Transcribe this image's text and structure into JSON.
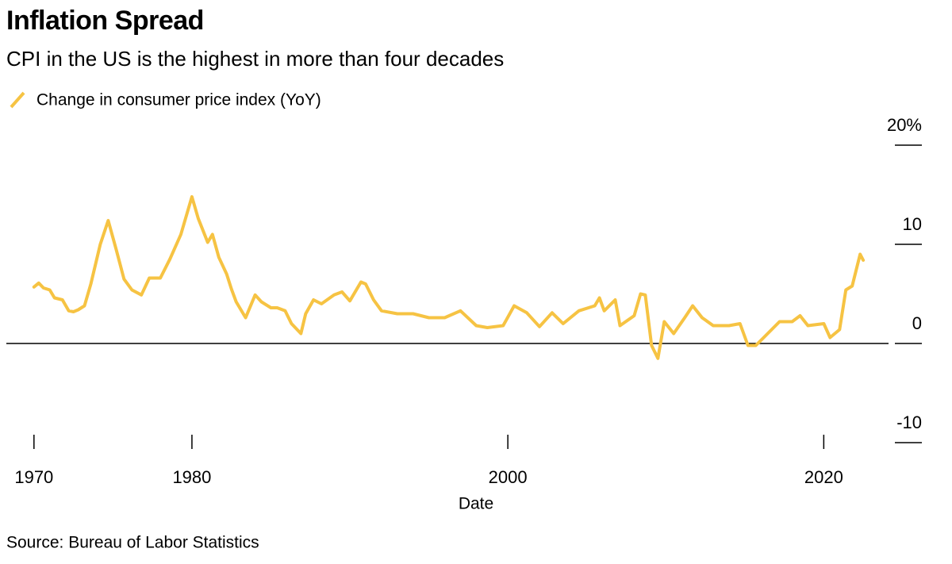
{
  "chart_data": {
    "type": "line",
    "title": "Inflation Spread",
    "subtitle": "CPI in the US is the highest in more than four decades",
    "source": "Source: Bureau of Labor Statistics",
    "x_label": "Date",
    "x": [
      1970.0,
      1970.3,
      1970.6,
      1971.0,
      1971.3,
      1971.8,
      1972.2,
      1972.5,
      1972.8,
      1973.2,
      1973.6,
      1974.2,
      1974.7,
      1975.2,
      1975.7,
      1976.2,
      1976.8,
      1977.3,
      1978.0,
      1978.6,
      1979.3,
      1980.0,
      1980.4,
      1981.0,
      1981.3,
      1981.7,
      1982.2,
      1982.5,
      1982.8,
      1983.4,
      1984.0,
      1984.4,
      1985.0,
      1985.4,
      1985.9,
      1986.3,
      1986.9,
      1987.2,
      1987.7,
      1988.2,
      1989.0,
      1989.5,
      1990.0,
      1990.7,
      1991.0,
      1991.5,
      1992.0,
      1993.0,
      1994.0,
      1995.0,
      1996.0,
      1997.0,
      1998.0,
      1998.7,
      1999.7,
      2000.4,
      2001.2,
      2002.0,
      2002.8,
      2003.5,
      2004.5,
      2005.5,
      2005.8,
      2006.1,
      2006.8,
      2007.1,
      2008.0,
      2008.4,
      2008.7,
      2009.1,
      2009.5,
      2009.9,
      2010.5,
      2011.2,
      2011.7,
      2012.3,
      2013.0,
      2014.0,
      2014.7,
      2015.2,
      2015.7,
      2016.2,
      2017.2,
      2018.0,
      2018.5,
      2019.0,
      2020.0,
      2020.4,
      2021.0,
      2021.4,
      2021.8,
      2022.3,
      2022.5
    ],
    "series": [
      {
        "name": "Change in consumer price index (YoY)",
        "color": "#f6c343",
        "values": [
          5.7,
          6.1,
          5.6,
          5.4,
          4.6,
          4.4,
          3.3,
          3.2,
          3.4,
          3.8,
          6.0,
          10.0,
          12.4,
          9.5,
          6.5,
          5.4,
          4.9,
          6.6,
          6.6,
          8.5,
          11.0,
          14.8,
          12.6,
          10.2,
          11.0,
          8.7,
          7.0,
          5.5,
          4.2,
          2.6,
          4.9,
          4.2,
          3.6,
          3.6,
          3.3,
          2.0,
          1.0,
          3.0,
          4.4,
          4.0,
          4.9,
          5.2,
          4.3,
          6.2,
          6.0,
          4.4,
          3.3,
          3.0,
          3.0,
          2.6,
          2.6,
          3.3,
          1.8,
          1.6,
          1.8,
          3.8,
          3.1,
          1.7,
          3.1,
          2.0,
          3.3,
          3.8,
          4.6,
          3.3,
          4.4,
          1.8,
          2.8,
          5.0,
          4.9,
          -0.2,
          -1.5,
          2.2,
          1.0,
          2.6,
          3.8,
          2.6,
          1.8,
          1.8,
          2.0,
          -0.2,
          -0.2,
          0.6,
          2.2,
          2.2,
          2.8,
          1.8,
          2.0,
          0.6,
          1.4,
          5.4,
          5.8,
          9.0,
          8.4
        ]
      }
    ],
    "xlim": [
      1968,
      2024
    ],
    "xticks": [
      1970,
      1980,
      2000,
      2020
    ],
    "ylim": [
      -10,
      20
    ],
    "yticks": [
      {
        "value": 20,
        "label": "20%"
      },
      10,
      0,
      -10
    ]
  }
}
